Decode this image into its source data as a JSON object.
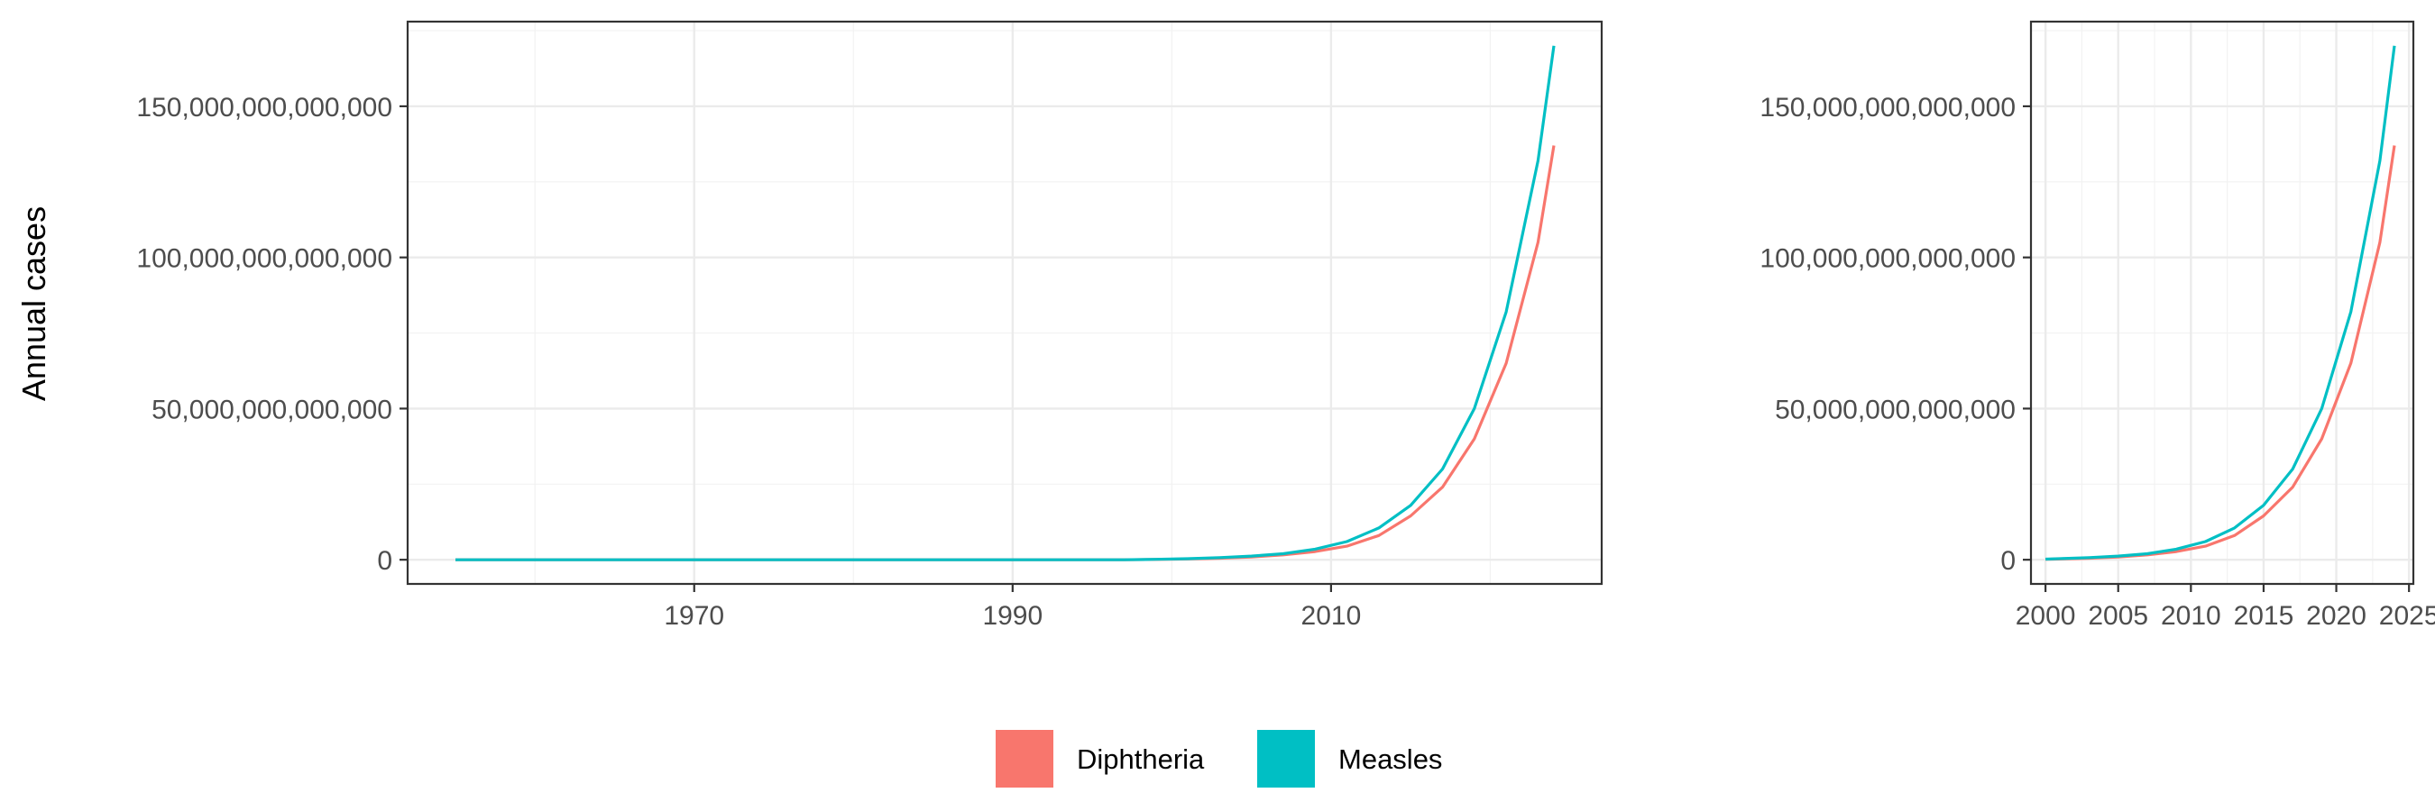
{
  "chart_data": [
    {
      "type": "line",
      "title": "",
      "xlabel": "",
      "ylabel": "Annual cases",
      "x_ticks": [
        "1970",
        "1990",
        "2010"
      ],
      "y_ticks": [
        "0",
        "50,000,000,000,000",
        "100,000,000,000,000",
        "150,000,000,000,000"
      ],
      "xlim": [
        1952,
        2027
      ],
      "ylim": [
        -8000000000000,
        178000000000000
      ],
      "grid": true,
      "x": [
        1955,
        1957,
        1959,
        1961,
        1963,
        1965,
        1967,
        1969,
        1971,
        1973,
        1975,
        1977,
        1979,
        1981,
        1983,
        1985,
        1987,
        1989,
        1991,
        1993,
        1995,
        1997,
        1999,
        2001,
        2003,
        2005,
        2007,
        2009,
        2011,
        2013,
        2015,
        2017,
        2019,
        2021,
        2023,
        2024
      ],
      "series": [
        {
          "name": "Diphtheria",
          "values": [
            0,
            0,
            0,
            0,
            0,
            0,
            0,
            0,
            0,
            0,
            0,
            0,
            0,
            0,
            0,
            0,
            0,
            0,
            0,
            0,
            0,
            0,
            100000000000,
            250000000000,
            500000000000,
            900000000000,
            1600000000000,
            2700000000000,
            4500000000000,
            8000000000000,
            14500000000000,
            24000000000000,
            40000000000000,
            65000000000000,
            105000000000000,
            137000000000000
          ]
        },
        {
          "name": "Measles",
          "values": [
            0,
            0,
            0,
            0,
            0,
            0,
            0,
            0,
            0,
            0,
            0,
            0,
            0,
            0,
            0,
            0,
            0,
            0,
            0,
            0,
            0,
            0,
            150000000000,
            350000000000,
            700000000000,
            1200000000000,
            2000000000000,
            3500000000000,
            6000000000000,
            10500000000000,
            18000000000000,
            30000000000000,
            50000000000000,
            82000000000000,
            132000000000000,
            170000000000000
          ]
        }
      ]
    },
    {
      "type": "line",
      "title": "",
      "xlabel": "",
      "ylabel": "",
      "x_ticks": [
        "2000",
        "2005",
        "2010",
        "2015",
        "2020",
        "2025"
      ],
      "y_ticks": [
        "0",
        "50,000,000,000,000",
        "100,000,000,000,000",
        "150,000,000,000,000"
      ],
      "xlim": [
        1999,
        2025.3
      ],
      "ylim": [
        -8000000000000,
        178000000000000
      ],
      "grid": true,
      "x": [
        2000,
        2003,
        2005,
        2007,
        2009,
        2011,
        2013,
        2015,
        2017,
        2019,
        2021,
        2023,
        2024
      ],
      "series": [
        {
          "name": "Diphtheria",
          "values": [
            150000000000,
            500000000000,
            900000000000,
            1600000000000,
            2700000000000,
            4500000000000,
            8000000000000,
            14500000000000,
            24000000000000,
            40000000000000,
            65000000000000,
            105000000000000,
            137000000000000
          ]
        },
        {
          "name": "Measles",
          "values": [
            200000000000,
            700000000000,
            1200000000000,
            2000000000000,
            3500000000000,
            6000000000000,
            10500000000000,
            18000000000000,
            30000000000000,
            50000000000000,
            82000000000000,
            132000000000000,
            170000000000000
          ]
        }
      ]
    }
  ],
  "legend": {
    "items": [
      {
        "name": "Diphtheria",
        "color": "#F8766D"
      },
      {
        "name": "Measles",
        "color": "#00BFC4"
      }
    ]
  }
}
